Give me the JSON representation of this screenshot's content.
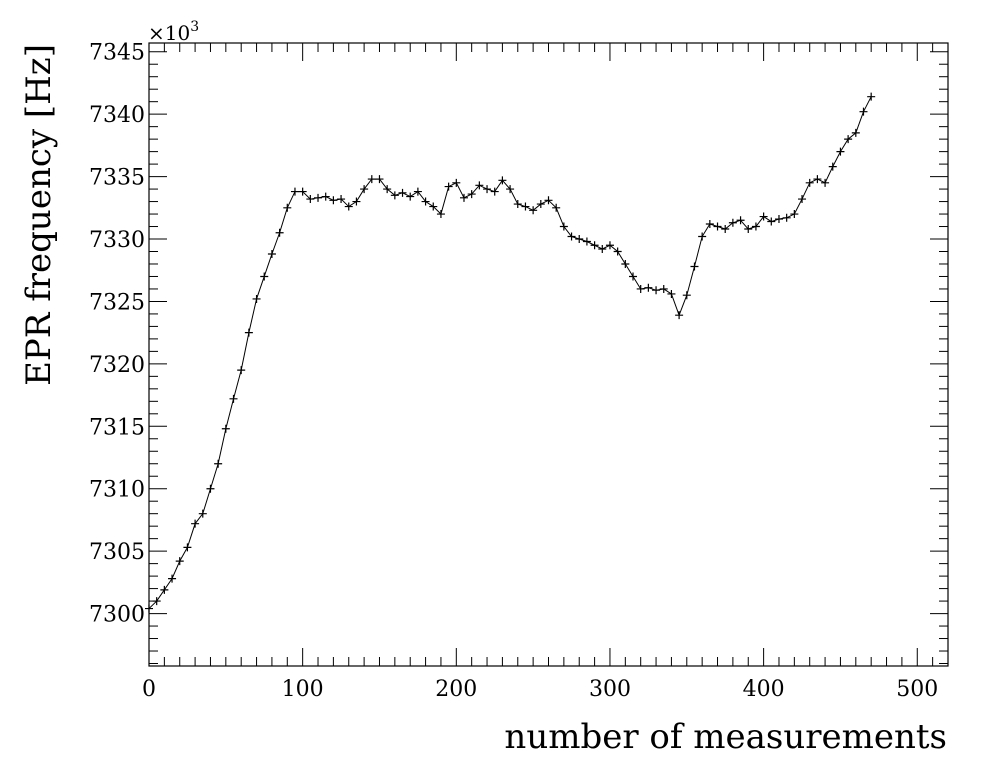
{
  "chart_data": {
    "type": "scatter",
    "xlabel": "number of measurements",
    "ylabel": "EPR frequency [Hz]",
    "y_multiplier": "×10",
    "y_multiplier_exponent": "3",
    "xlim": [
      0,
      520
    ],
    "ylim": [
      7295.8,
      7345.7
    ],
    "x_ticks": [
      0,
      100,
      200,
      300,
      400,
      500
    ],
    "y_ticks": [
      7300,
      7305,
      7310,
      7315,
      7320,
      7325,
      7330,
      7335,
      7340,
      7345
    ],
    "x_tick_labels": [
      "0",
      "100",
      "200",
      "300",
      "400",
      "500"
    ],
    "y_tick_labels": [
      "7300",
      "7305",
      "7310",
      "7315",
      "7320",
      "7325",
      "7330",
      "7335",
      "7340",
      "7345"
    ],
    "marker": "plus",
    "connected": true,
    "grid": false,
    "points": [
      [
        0,
        7300.4
      ],
      [
        5,
        7301.0
      ],
      [
        10,
        7301.9
      ],
      [
        15,
        7302.8
      ],
      [
        20,
        7304.2
      ],
      [
        25,
        7305.3
      ],
      [
        30,
        7307.2
      ],
      [
        35,
        7308.0
      ],
      [
        40,
        7310.0
      ],
      [
        45,
        7312.0
      ],
      [
        50,
        7314.8
      ],
      [
        55,
        7317.2
      ],
      [
        60,
        7319.5
      ],
      [
        65,
        7322.5
      ],
      [
        70,
        7325.2
      ],
      [
        75,
        7327.0
      ],
      [
        80,
        7328.8
      ],
      [
        85,
        7330.5
      ],
      [
        90,
        7332.5
      ],
      [
        95,
        7333.8
      ],
      [
        100,
        7333.8
      ],
      [
        105,
        7333.2
      ],
      [
        110,
        7333.3
      ],
      [
        115,
        7333.4
      ],
      [
        120,
        7333.1
      ],
      [
        125,
        7333.2
      ],
      [
        130,
        7332.6
      ],
      [
        135,
        7333.0
      ],
      [
        140,
        7334.0
      ],
      [
        145,
        7334.8
      ],
      [
        150,
        7334.8
      ],
      [
        155,
        7334.0
      ],
      [
        160,
        7333.5
      ],
      [
        165,
        7333.7
      ],
      [
        170,
        7333.4
      ],
      [
        175,
        7333.8
      ],
      [
        180,
        7333.0
      ],
      [
        185,
        7332.6
      ],
      [
        190,
        7332.0
      ],
      [
        195,
        7334.2
      ],
      [
        200,
        7334.5
      ],
      [
        205,
        7333.3
      ],
      [
        210,
        7333.6
      ],
      [
        215,
        7334.3
      ],
      [
        220,
        7334.0
      ],
      [
        225,
        7333.8
      ],
      [
        230,
        7334.7
      ],
      [
        235,
        7334.0
      ],
      [
        240,
        7332.8
      ],
      [
        245,
        7332.6
      ],
      [
        250,
        7332.3
      ],
      [
        255,
        7332.8
      ],
      [
        260,
        7333.1
      ],
      [
        265,
        7332.5
      ],
      [
        270,
        7331.0
      ],
      [
        275,
        7330.2
      ],
      [
        280,
        7330.0
      ],
      [
        285,
        7329.8
      ],
      [
        290,
        7329.5
      ],
      [
        295,
        7329.2
      ],
      [
        300,
        7329.5
      ],
      [
        305,
        7329.0
      ],
      [
        310,
        7328.0
      ],
      [
        315,
        7327.0
      ],
      [
        320,
        7326.0
      ],
      [
        325,
        7326.1
      ],
      [
        330,
        7325.9
      ],
      [
        335,
        7326.0
      ],
      [
        340,
        7325.6
      ],
      [
        345,
        7323.9
      ],
      [
        350,
        7325.5
      ],
      [
        355,
        7327.8
      ],
      [
        360,
        7330.2
      ],
      [
        365,
        7331.2
      ],
      [
        370,
        7331.0
      ],
      [
        375,
        7330.8
      ],
      [
        380,
        7331.3
      ],
      [
        385,
        7331.5
      ],
      [
        390,
        7330.8
      ],
      [
        395,
        7331.0
      ],
      [
        400,
        7331.8
      ],
      [
        405,
        7331.4
      ],
      [
        410,
        7331.6
      ],
      [
        415,
        7331.7
      ],
      [
        420,
        7332.0
      ],
      [
        425,
        7333.2
      ],
      [
        430,
        7334.5
      ],
      [
        435,
        7334.8
      ],
      [
        440,
        7334.5
      ],
      [
        445,
        7335.8
      ],
      [
        450,
        7337.0
      ],
      [
        455,
        7338.0
      ],
      [
        460,
        7338.5
      ],
      [
        465,
        7340.2
      ],
      [
        470,
        7341.4
      ]
    ]
  }
}
